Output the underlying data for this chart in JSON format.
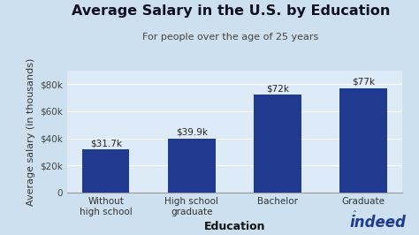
{
  "title": "Average Salary in the U.S. by Education",
  "subtitle": "For people over the age of 25 years",
  "xlabel": "Education",
  "ylabel": "Average salary (in thousands)",
  "categories": [
    "Without\nhigh school",
    "High school\ngraduate",
    "Bachelor",
    "Graduate"
  ],
  "values": [
    31700,
    39900,
    72000,
    77000
  ],
  "bar_labels": [
    "$31.7k",
    "$39.9k",
    "$72k",
    "$77k"
  ],
  "bar_color": "#1f3a8f",
  "background_color": "#cce0f0",
  "plot_bg_color": "#ddeaf7",
  "ylim": [
    0,
    90000
  ],
  "yticks": [
    0,
    20000,
    40000,
    60000,
    80000
  ],
  "ytick_labels": [
    "0",
    "$20k",
    "$40k",
    "$60k",
    "$80k"
  ],
  "title_fontsize": 11.5,
  "subtitle_fontsize": 8,
  "xlabel_fontsize": 9,
  "ylabel_fontsize": 8,
  "tick_fontsize": 7.5,
  "bar_label_fontsize": 7.5,
  "indeed_color": "#1f3a8f",
  "indeed_fontsize": 12
}
